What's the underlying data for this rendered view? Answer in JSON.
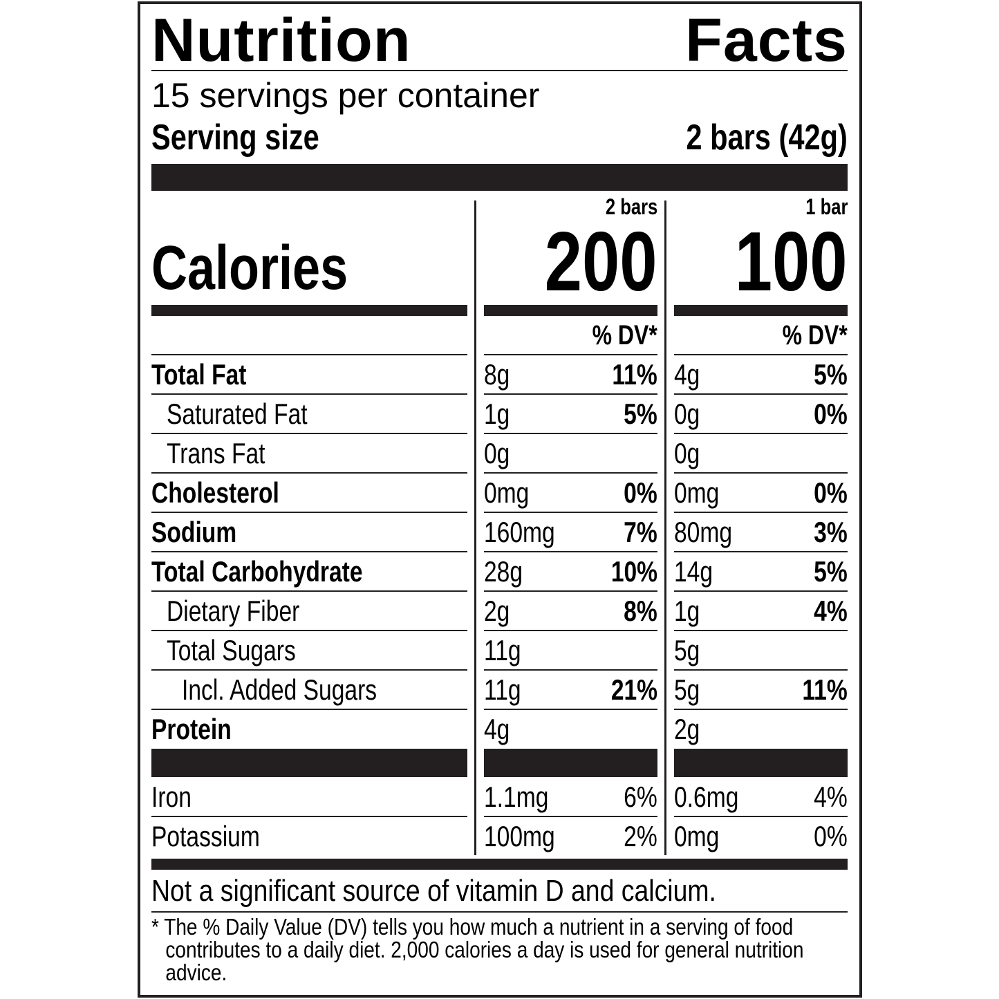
{
  "title_left": "Nutrition",
  "title_right": "Facts",
  "servings_per_container": "15 servings per container",
  "serving_size_label": "Serving size",
  "serving_size_value": "2 bars (42g)",
  "calories_label": "Calories",
  "columns": [
    {
      "header": "2 bars",
      "calories": "200",
      "dv_header": "% DV*"
    },
    {
      "header": "1 bar",
      "calories": "100",
      "dv_header": "% DV*"
    }
  ],
  "nutrients": [
    {
      "label": "Total Fat",
      "bold": true,
      "indent": 0,
      "values": [
        {
          "amount": "8g",
          "dv": "11%"
        },
        {
          "amount": "4g",
          "dv": "5%"
        }
      ]
    },
    {
      "label": "Saturated Fat",
      "bold": false,
      "indent": 1,
      "values": [
        {
          "amount": "1g",
          "dv": "5%"
        },
        {
          "amount": "0g",
          "dv": "0%"
        }
      ]
    },
    {
      "label": "Trans Fat",
      "bold": false,
      "indent": 1,
      "values": [
        {
          "amount": "0g",
          "dv": ""
        },
        {
          "amount": "0g",
          "dv": ""
        }
      ]
    },
    {
      "label": "Cholesterol",
      "bold": true,
      "indent": 0,
      "values": [
        {
          "amount": "0mg",
          "dv": "0%"
        },
        {
          "amount": "0mg",
          "dv": "0%"
        }
      ]
    },
    {
      "label": "Sodium",
      "bold": true,
      "indent": 0,
      "values": [
        {
          "amount": "160mg",
          "dv": "7%"
        },
        {
          "amount": "80mg",
          "dv": "3%"
        }
      ]
    },
    {
      "label": "Total Carbohydrate",
      "bold": true,
      "indent": 0,
      "values": [
        {
          "amount": "28g",
          "dv": "10%"
        },
        {
          "amount": "14g",
          "dv": "5%"
        }
      ]
    },
    {
      "label": "Dietary Fiber",
      "bold": false,
      "indent": 1,
      "values": [
        {
          "amount": "2g",
          "dv": "8%"
        },
        {
          "amount": "1g",
          "dv": "4%"
        }
      ]
    },
    {
      "label": "Total Sugars",
      "bold": false,
      "indent": 1,
      "values": [
        {
          "amount": "11g",
          "dv": ""
        },
        {
          "amount": "5g",
          "dv": ""
        }
      ]
    },
    {
      "label": "Incl. Added Sugars",
      "bold": false,
      "indent": 2,
      "values": [
        {
          "amount": "11g",
          "dv": "21%"
        },
        {
          "amount": "5g",
          "dv": "11%"
        }
      ]
    },
    {
      "label": "Protein",
      "bold": true,
      "indent": 0,
      "values": [
        {
          "amount": "4g",
          "dv": ""
        },
        {
          "amount": "2g",
          "dv": ""
        }
      ]
    }
  ],
  "minerals": [
    {
      "label": "Iron",
      "values": [
        {
          "amount": "1.1mg",
          "dv": "6%"
        },
        {
          "amount": "0.6mg",
          "dv": "4%"
        }
      ]
    },
    {
      "label": "Potassium",
      "values": [
        {
          "amount": "100mg",
          "dv": "2%"
        },
        {
          "amount": "0mg",
          "dv": "0%"
        }
      ]
    }
  ],
  "not_significant": "Not a significant source of vitamin D and calcium.",
  "footnote": "* The % Daily Value (DV) tells you how much a nutrient in a serving of food contributes to a daily diet. 2,000 calories a day is used for general nutrition advice."
}
